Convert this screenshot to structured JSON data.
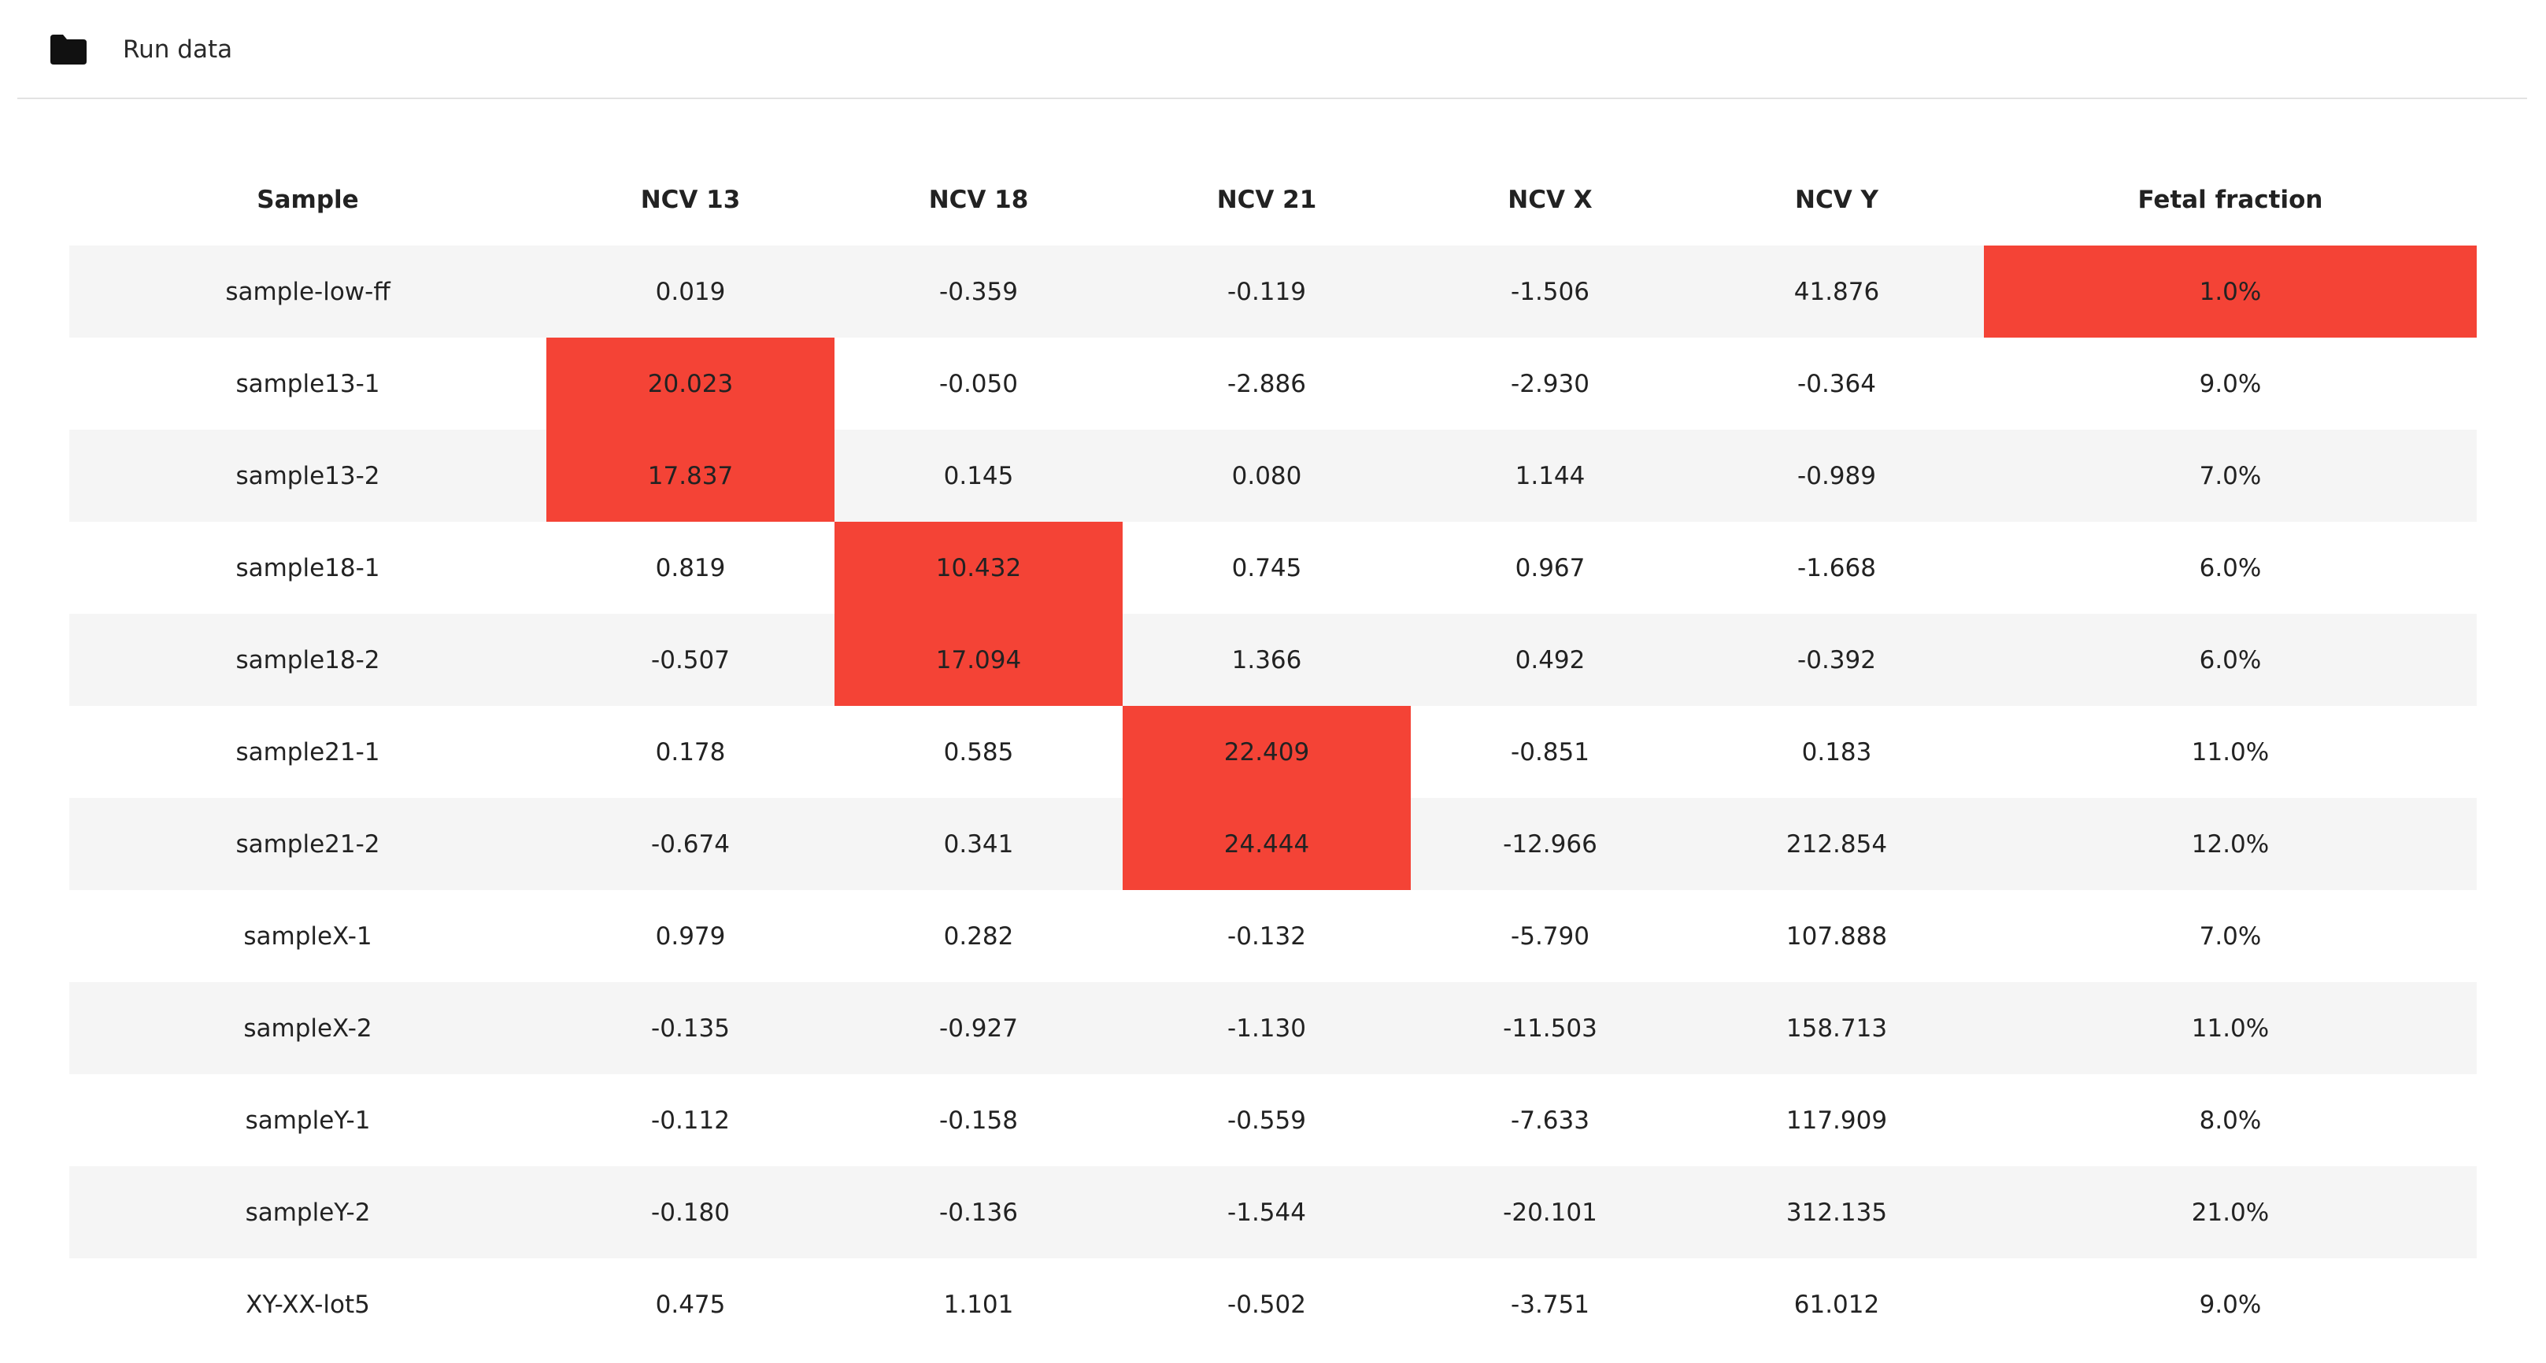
{
  "header": {
    "icon": "folder-icon",
    "title": "Run data"
  },
  "colors": {
    "flag": "#f44336",
    "stripe": "#f5f5f5"
  },
  "table": {
    "columns": [
      "Sample",
      "NCV 13",
      "NCV 18",
      "NCV 21",
      "NCV X",
      "NCV Y",
      "Fetal fraction"
    ],
    "rows": [
      {
        "cells": [
          "sample-low-ff",
          "0.019",
          "-0.359",
          "-0.119",
          "-1.506",
          "41.876",
          "1.0%"
        ],
        "flagged": [
          6
        ]
      },
      {
        "cells": [
          "sample13-1",
          "20.023",
          "-0.050",
          "-2.886",
          "-2.930",
          "-0.364",
          "9.0%"
        ],
        "flagged": [
          1
        ]
      },
      {
        "cells": [
          "sample13-2",
          "17.837",
          "0.145",
          "0.080",
          "1.144",
          "-0.989",
          "7.0%"
        ],
        "flagged": [
          1
        ]
      },
      {
        "cells": [
          "sample18-1",
          "0.819",
          "10.432",
          "0.745",
          "0.967",
          "-1.668",
          "6.0%"
        ],
        "flagged": [
          2
        ]
      },
      {
        "cells": [
          "sample18-2",
          "-0.507",
          "17.094",
          "1.366",
          "0.492",
          "-0.392",
          "6.0%"
        ],
        "flagged": [
          2
        ]
      },
      {
        "cells": [
          "sample21-1",
          "0.178",
          "0.585",
          "22.409",
          "-0.851",
          "0.183",
          "11.0%"
        ],
        "flagged": [
          3
        ]
      },
      {
        "cells": [
          "sample21-2",
          "-0.674",
          "0.341",
          "24.444",
          "-12.966",
          "212.854",
          "12.0%"
        ],
        "flagged": [
          3
        ]
      },
      {
        "cells": [
          "sampleX-1",
          "0.979",
          "0.282",
          "-0.132",
          "-5.790",
          "107.888",
          "7.0%"
        ],
        "flagged": []
      },
      {
        "cells": [
          "sampleX-2",
          "-0.135",
          "-0.927",
          "-1.130",
          "-11.503",
          "158.713",
          "11.0%"
        ],
        "flagged": []
      },
      {
        "cells": [
          "sampleY-1",
          "-0.112",
          "-0.158",
          "-0.559",
          "-7.633",
          "117.909",
          "8.0%"
        ],
        "flagged": []
      },
      {
        "cells": [
          "sampleY-2",
          "-0.180",
          "-0.136",
          "-1.544",
          "-20.101",
          "312.135",
          "21.0%"
        ],
        "flagged": []
      },
      {
        "cells": [
          "XY-XX-lot5",
          "0.475",
          "1.101",
          "-0.502",
          "-3.751",
          "61.012",
          "9.0%"
        ],
        "flagged": []
      }
    ]
  }
}
